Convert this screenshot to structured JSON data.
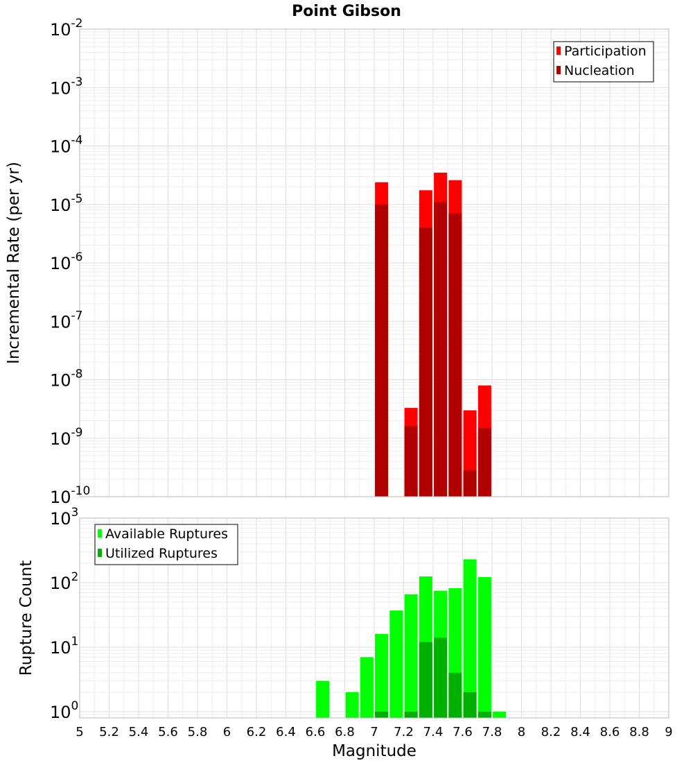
{
  "title": "Point Gibson",
  "xlabel": "Magnitude",
  "x_ticks": [
    "5",
    "5.2",
    "5.4",
    "5.6",
    "5.8",
    "6",
    "6.2",
    "6.4",
    "6.6",
    "6.8",
    "7",
    "7.2",
    "7.4",
    "7.6",
    "7.8",
    "8",
    "8.2",
    "8.4",
    "8.6",
    "8.8",
    "9"
  ],
  "chart_data": [
    {
      "type": "bar",
      "ylabel": "Incremental Rate (per yr)",
      "y_scale": "log",
      "ylim": [
        1e-10,
        0.01
      ],
      "xlim": [
        5,
        9
      ],
      "y_ticks": [
        {
          "base": "10",
          "exp": "-10"
        },
        {
          "base": "10",
          "exp": "-9"
        },
        {
          "base": "10",
          "exp": "-8"
        },
        {
          "base": "10",
          "exp": "-7"
        },
        {
          "base": "10",
          "exp": "-6"
        },
        {
          "base": "10",
          "exp": "-5"
        },
        {
          "base": "10",
          "exp": "-4"
        },
        {
          "base": "10",
          "exp": "-3"
        },
        {
          "base": "10",
          "exp": "-2"
        }
      ],
      "legend": {
        "position": "top-right"
      },
      "grid": true,
      "series": [
        {
          "name": "Participation",
          "color": "#ff0000",
          "points": [
            [
              7.05,
              2.4e-05
            ],
            [
              7.25,
              3.3e-09
            ],
            [
              7.35,
              1.75e-05
            ],
            [
              7.45,
              3.5e-05
            ],
            [
              7.55,
              2.6e-05
            ],
            [
              7.65,
              3e-09
            ],
            [
              7.75,
              8e-09
            ]
          ]
        },
        {
          "name": "Nucleation",
          "color": "#b00000",
          "points": [
            [
              7.05,
              1e-05
            ],
            [
              7.25,
              1.6e-09
            ],
            [
              7.35,
              4e-06
            ],
            [
              7.45,
              1.1e-05
            ],
            [
              7.55,
              7e-06
            ],
            [
              7.65,
              2.8e-10
            ],
            [
              7.75,
              1.5e-09
            ]
          ]
        }
      ]
    },
    {
      "type": "bar",
      "ylabel": "Rupture Count",
      "y_scale": "log",
      "ylim": [
        0.8,
        1000
      ],
      "xlim": [
        5,
        9
      ],
      "y_ticks": [
        {
          "base": "10",
          "exp": "0"
        },
        {
          "base": "10",
          "exp": "1"
        },
        {
          "base": "10",
          "exp": "2"
        },
        {
          "base": "10",
          "exp": "3"
        }
      ],
      "legend": {
        "position": "top-left"
      },
      "grid": true,
      "series": [
        {
          "name": "Available Ruptures",
          "color": "#00ff00",
          "points": [
            [
              6.65,
              3
            ],
            [
              6.85,
              2
            ],
            [
              6.95,
              7
            ],
            [
              7.05,
              16
            ],
            [
              7.15,
              37
            ],
            [
              7.25,
              66
            ],
            [
              7.35,
              125
            ],
            [
              7.45,
              75
            ],
            [
              7.55,
              82
            ],
            [
              7.65,
              230
            ],
            [
              7.75,
              122
            ],
            [
              7.85,
              1
            ]
          ]
        },
        {
          "name": "Utilized Ruptures",
          "color": "#00b000",
          "points": [
            [
              7.05,
              1
            ],
            [
              7.25,
              1
            ],
            [
              7.35,
              12
            ],
            [
              7.45,
              14
            ],
            [
              7.55,
              4
            ],
            [
              7.65,
              2
            ],
            [
              7.75,
              1
            ]
          ]
        }
      ]
    }
  ]
}
